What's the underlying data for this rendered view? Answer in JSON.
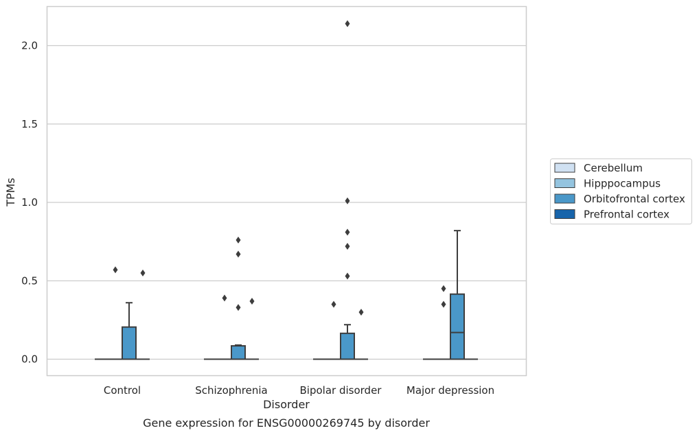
{
  "chart_data": {
    "type": "box",
    "title": "Gene expression for ENSG00000269745 by disorder",
    "xlabel": "Disorder",
    "ylabel": "TPMs",
    "categories": [
      "Control",
      "Schizophrenia",
      "Bipolar disorder",
      "Major depression"
    ],
    "ylim": [
      -0.1,
      2.25
    ],
    "yticks": [
      "0.0",
      "0.5",
      "1.0",
      "1.5",
      "2.0"
    ],
    "ytick_values": [
      0.0,
      0.5,
      1.0,
      1.5,
      2.0
    ],
    "grid": "horizontal",
    "legend_position": "right",
    "series": [
      {
        "name": "Cerebellum",
        "color": "#d0e1f2",
        "boxes": [
          {
            "category": "Control",
            "q1": 0,
            "median": 0,
            "q3": 0,
            "whisker_low": 0,
            "whisker_high": 0,
            "outliers": []
          },
          {
            "category": "Schizophrenia",
            "q1": 0,
            "median": 0,
            "q3": 0,
            "whisker_low": 0,
            "whisker_high": 0,
            "outliers": []
          },
          {
            "category": "Bipolar disorder",
            "q1": 0,
            "median": 0,
            "q3": 0,
            "whisker_low": 0,
            "whisker_high": 0,
            "outliers": []
          },
          {
            "category": "Major depression",
            "q1": 0,
            "median": 0,
            "q3": 0,
            "whisker_low": 0,
            "whisker_high": 0,
            "outliers": []
          }
        ]
      },
      {
        "name": "Hipppocampus",
        "color": "#94c4df",
        "boxes": [
          {
            "category": "Control",
            "q1": 0,
            "median": 0,
            "q3": 0,
            "whisker_low": 0,
            "whisker_high": 0,
            "outliers": [
              0.57
            ]
          },
          {
            "category": "Schizophrenia",
            "q1": 0,
            "median": 0,
            "q3": 0,
            "whisker_low": 0,
            "whisker_high": 0,
            "outliers": [
              0.39
            ]
          },
          {
            "category": "Bipolar disorder",
            "q1": 0,
            "median": 0,
            "q3": 0,
            "whisker_low": 0,
            "whisker_high": 0,
            "outliers": [
              0.35
            ]
          },
          {
            "category": "Major depression",
            "q1": 0,
            "median": 0,
            "q3": 0,
            "whisker_low": 0,
            "whisker_high": 0,
            "outliers": [
              0.45,
              0.35
            ]
          }
        ]
      },
      {
        "name": "Orbitofrontal cortex",
        "color": "#4a98c9",
        "boxes": [
          {
            "category": "Control",
            "q1": 0,
            "median": 0,
            "q3": 0.205,
            "whisker_low": 0,
            "whisker_high": 0.36,
            "outliers": []
          },
          {
            "category": "Schizophrenia",
            "q1": 0,
            "median": 0,
            "q3": 0.085,
            "whisker_low": 0,
            "whisker_high": 0.09,
            "outliers": [
              0.76,
              0.67,
              0.33
            ]
          },
          {
            "category": "Bipolar disorder",
            "q1": 0,
            "median": 0,
            "q3": 0.165,
            "whisker_low": 0,
            "whisker_high": 0.22,
            "outliers": [
              2.14,
              1.01,
              0.81,
              0.72,
              0.53
            ]
          },
          {
            "category": "Major depression",
            "q1": 0,
            "median": 0.17,
            "q3": 0.415,
            "whisker_low": 0,
            "whisker_high": 0.82,
            "outliers": []
          }
        ]
      },
      {
        "name": "Prefrontal cortex",
        "color": "#1764ab",
        "boxes": [
          {
            "category": "Control",
            "q1": 0,
            "median": 0,
            "q3": 0,
            "whisker_low": 0,
            "whisker_high": 0,
            "outliers": [
              0.55
            ]
          },
          {
            "category": "Schizophrenia",
            "q1": 0,
            "median": 0,
            "q3": 0,
            "whisker_low": 0,
            "whisker_high": 0,
            "outliers": [
              0.37
            ]
          },
          {
            "category": "Bipolar disorder",
            "q1": 0,
            "median": 0,
            "q3": 0,
            "whisker_low": 0,
            "whisker_high": 0,
            "outliers": [
              0.3
            ]
          },
          {
            "category": "Major depression",
            "q1": 0,
            "median": 0,
            "q3": 0,
            "whisker_low": 0,
            "whisker_high": 0,
            "outliers": []
          }
        ]
      }
    ],
    "colors": {
      "grid": "#cccccc",
      "frame": "#cccccc",
      "line": "#3d3d3d",
      "marker": "#3d3d3d"
    }
  }
}
